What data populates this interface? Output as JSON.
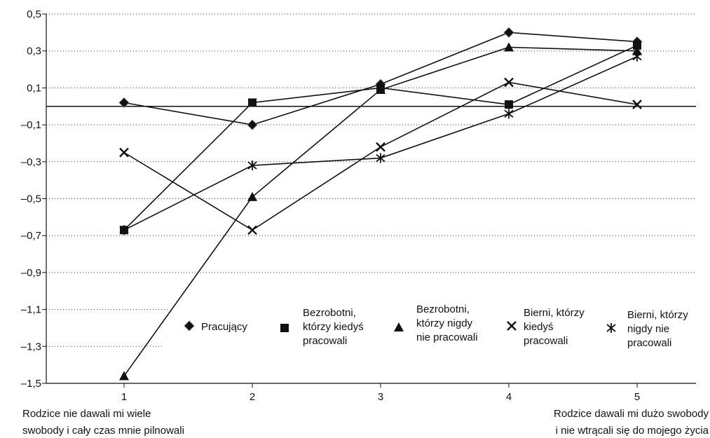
{
  "chart_data": {
    "type": "line",
    "x": [
      1,
      2,
      3,
      4,
      5
    ],
    "xtick_labels": [
      "1",
      "2",
      "3",
      "4",
      "5"
    ],
    "ytick_labels": [
      "0,5",
      "0,3",
      "0,1",
      "–0,1",
      "–0,3",
      "–0,5",
      "–0,7",
      "–0,9",
      "–1,1",
      "–1,3",
      "–1,5"
    ],
    "ylim": [
      -1.5,
      0.5
    ],
    "yticks": [
      0.5,
      0.3,
      0.1,
      -0.1,
      -0.3,
      -0.5,
      -0.7,
      -0.9,
      -1.1,
      -1.3,
      -1.5
    ],
    "zero_line": true,
    "grid": "horizontal-dotted",
    "x_left_note": [
      "Rodzice nie dawali mi wiele",
      "swobody i cały czas mnie pilnowali"
    ],
    "x_right_note": [
      "Rodzice dawali mi dużo swobody",
      "i nie wtrącali się do mojego życia"
    ],
    "legend_placement": "lower-middle",
    "series": [
      {
        "name": [
          "Pracujący"
        ],
        "marker": "diamond",
        "values": [
          0.02,
          -0.1,
          0.12,
          0.4,
          0.35
        ]
      },
      {
        "name": [
          "Bezrobotni,",
          "którzy kiedyś",
          "pracowali"
        ],
        "marker": "square",
        "values": [
          -0.67,
          0.02,
          0.1,
          0.01,
          0.33
        ]
      },
      {
        "name": [
          "Bezrobotni,",
          "którzy nigdy",
          "nie pracowali"
        ],
        "marker": "triangle",
        "values": [
          -1.46,
          -0.49,
          0.09,
          0.32,
          0.3
        ]
      },
      {
        "name": [
          "Bierni, którzy",
          "kiedyś",
          "pracowali"
        ],
        "marker": "x",
        "values": [
          -0.25,
          -0.67,
          -0.22,
          0.13,
          0.01
        ]
      },
      {
        "name": [
          "Bierni, którzy",
          "nigdy nie",
          "pracowali"
        ],
        "marker": "asterisk",
        "values": [
          -0.67,
          -0.32,
          -0.28,
          -0.04,
          0.27
        ]
      }
    ]
  }
}
